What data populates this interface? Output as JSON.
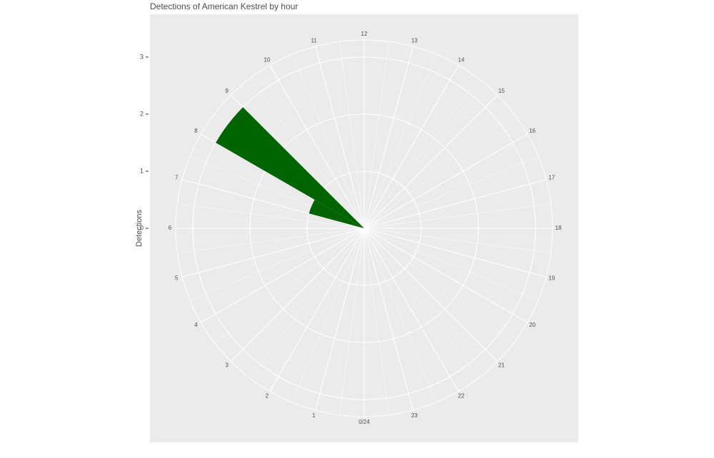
{
  "chart_data": {
    "type": "polar-bar",
    "title": "Detections of American Kestrel by hour",
    "y_label": "Detections",
    "categories": [
      "0/24",
      "1",
      "2",
      "3",
      "4",
      "5",
      "6",
      "7",
      "8",
      "9",
      "10",
      "11",
      "12",
      "13",
      "14",
      "15",
      "16",
      "17",
      "18",
      "19",
      "20",
      "21",
      "22",
      "23"
    ],
    "values": [
      0,
      0,
      0,
      0,
      0,
      0,
      0,
      1,
      3,
      0,
      0,
      0,
      0,
      0,
      0,
      0,
      0,
      0,
      0,
      0,
      0,
      0,
      0,
      0
    ],
    "color": "#006400",
    "ylim": [
      0,
      3.3
    ],
    "yticks": [
      0,
      1,
      2,
      3
    ],
    "grid": true
  }
}
